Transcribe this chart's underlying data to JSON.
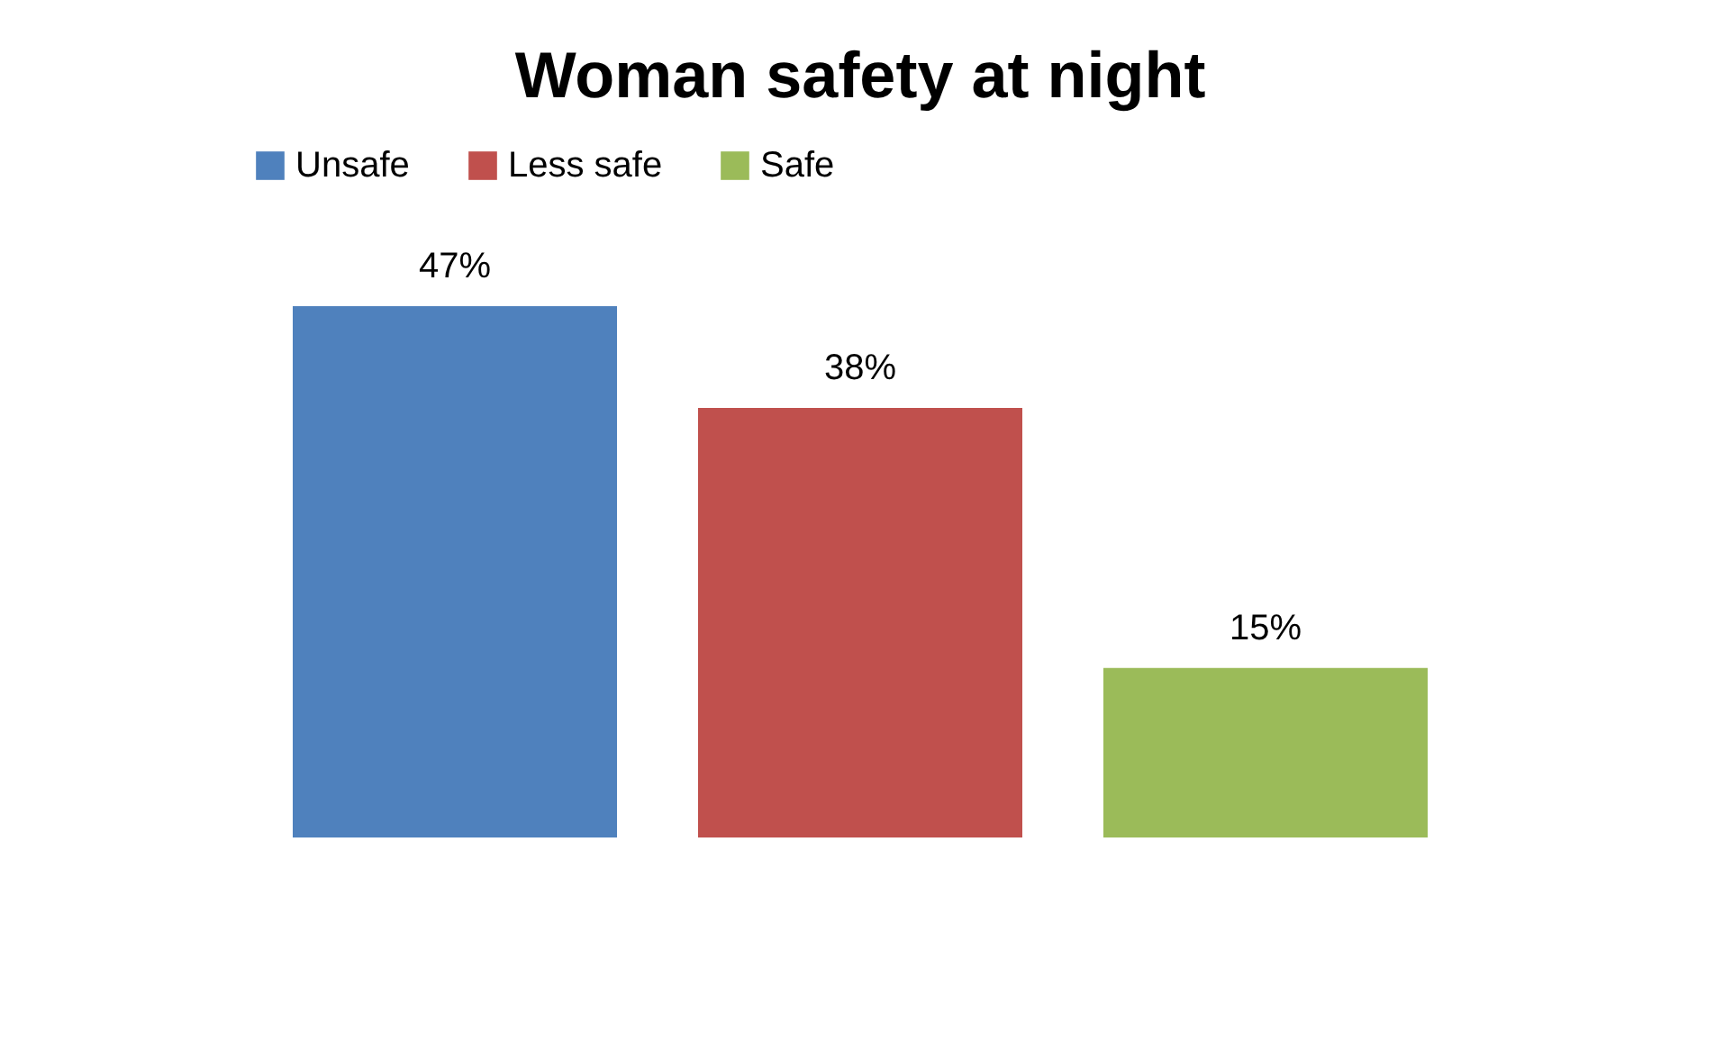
{
  "chart_data": {
    "type": "bar",
    "title": "Woman safety at night",
    "categories": [
      null
    ],
    "series": [
      {
        "name": "Unsafe",
        "color": "#4f81bd",
        "values": [
          47
        ],
        "value_labels": [
          "47%"
        ]
      },
      {
        "name": "Less safe",
        "color": "#c0504d",
        "values": [
          38
        ],
        "value_labels": [
          "38%"
        ]
      },
      {
        "name": "Safe",
        "color": "#9bbb59",
        "values": [
          15
        ],
        "value_labels": [
          "15%"
        ]
      }
    ],
    "legend": "top",
    "grid": false
  }
}
